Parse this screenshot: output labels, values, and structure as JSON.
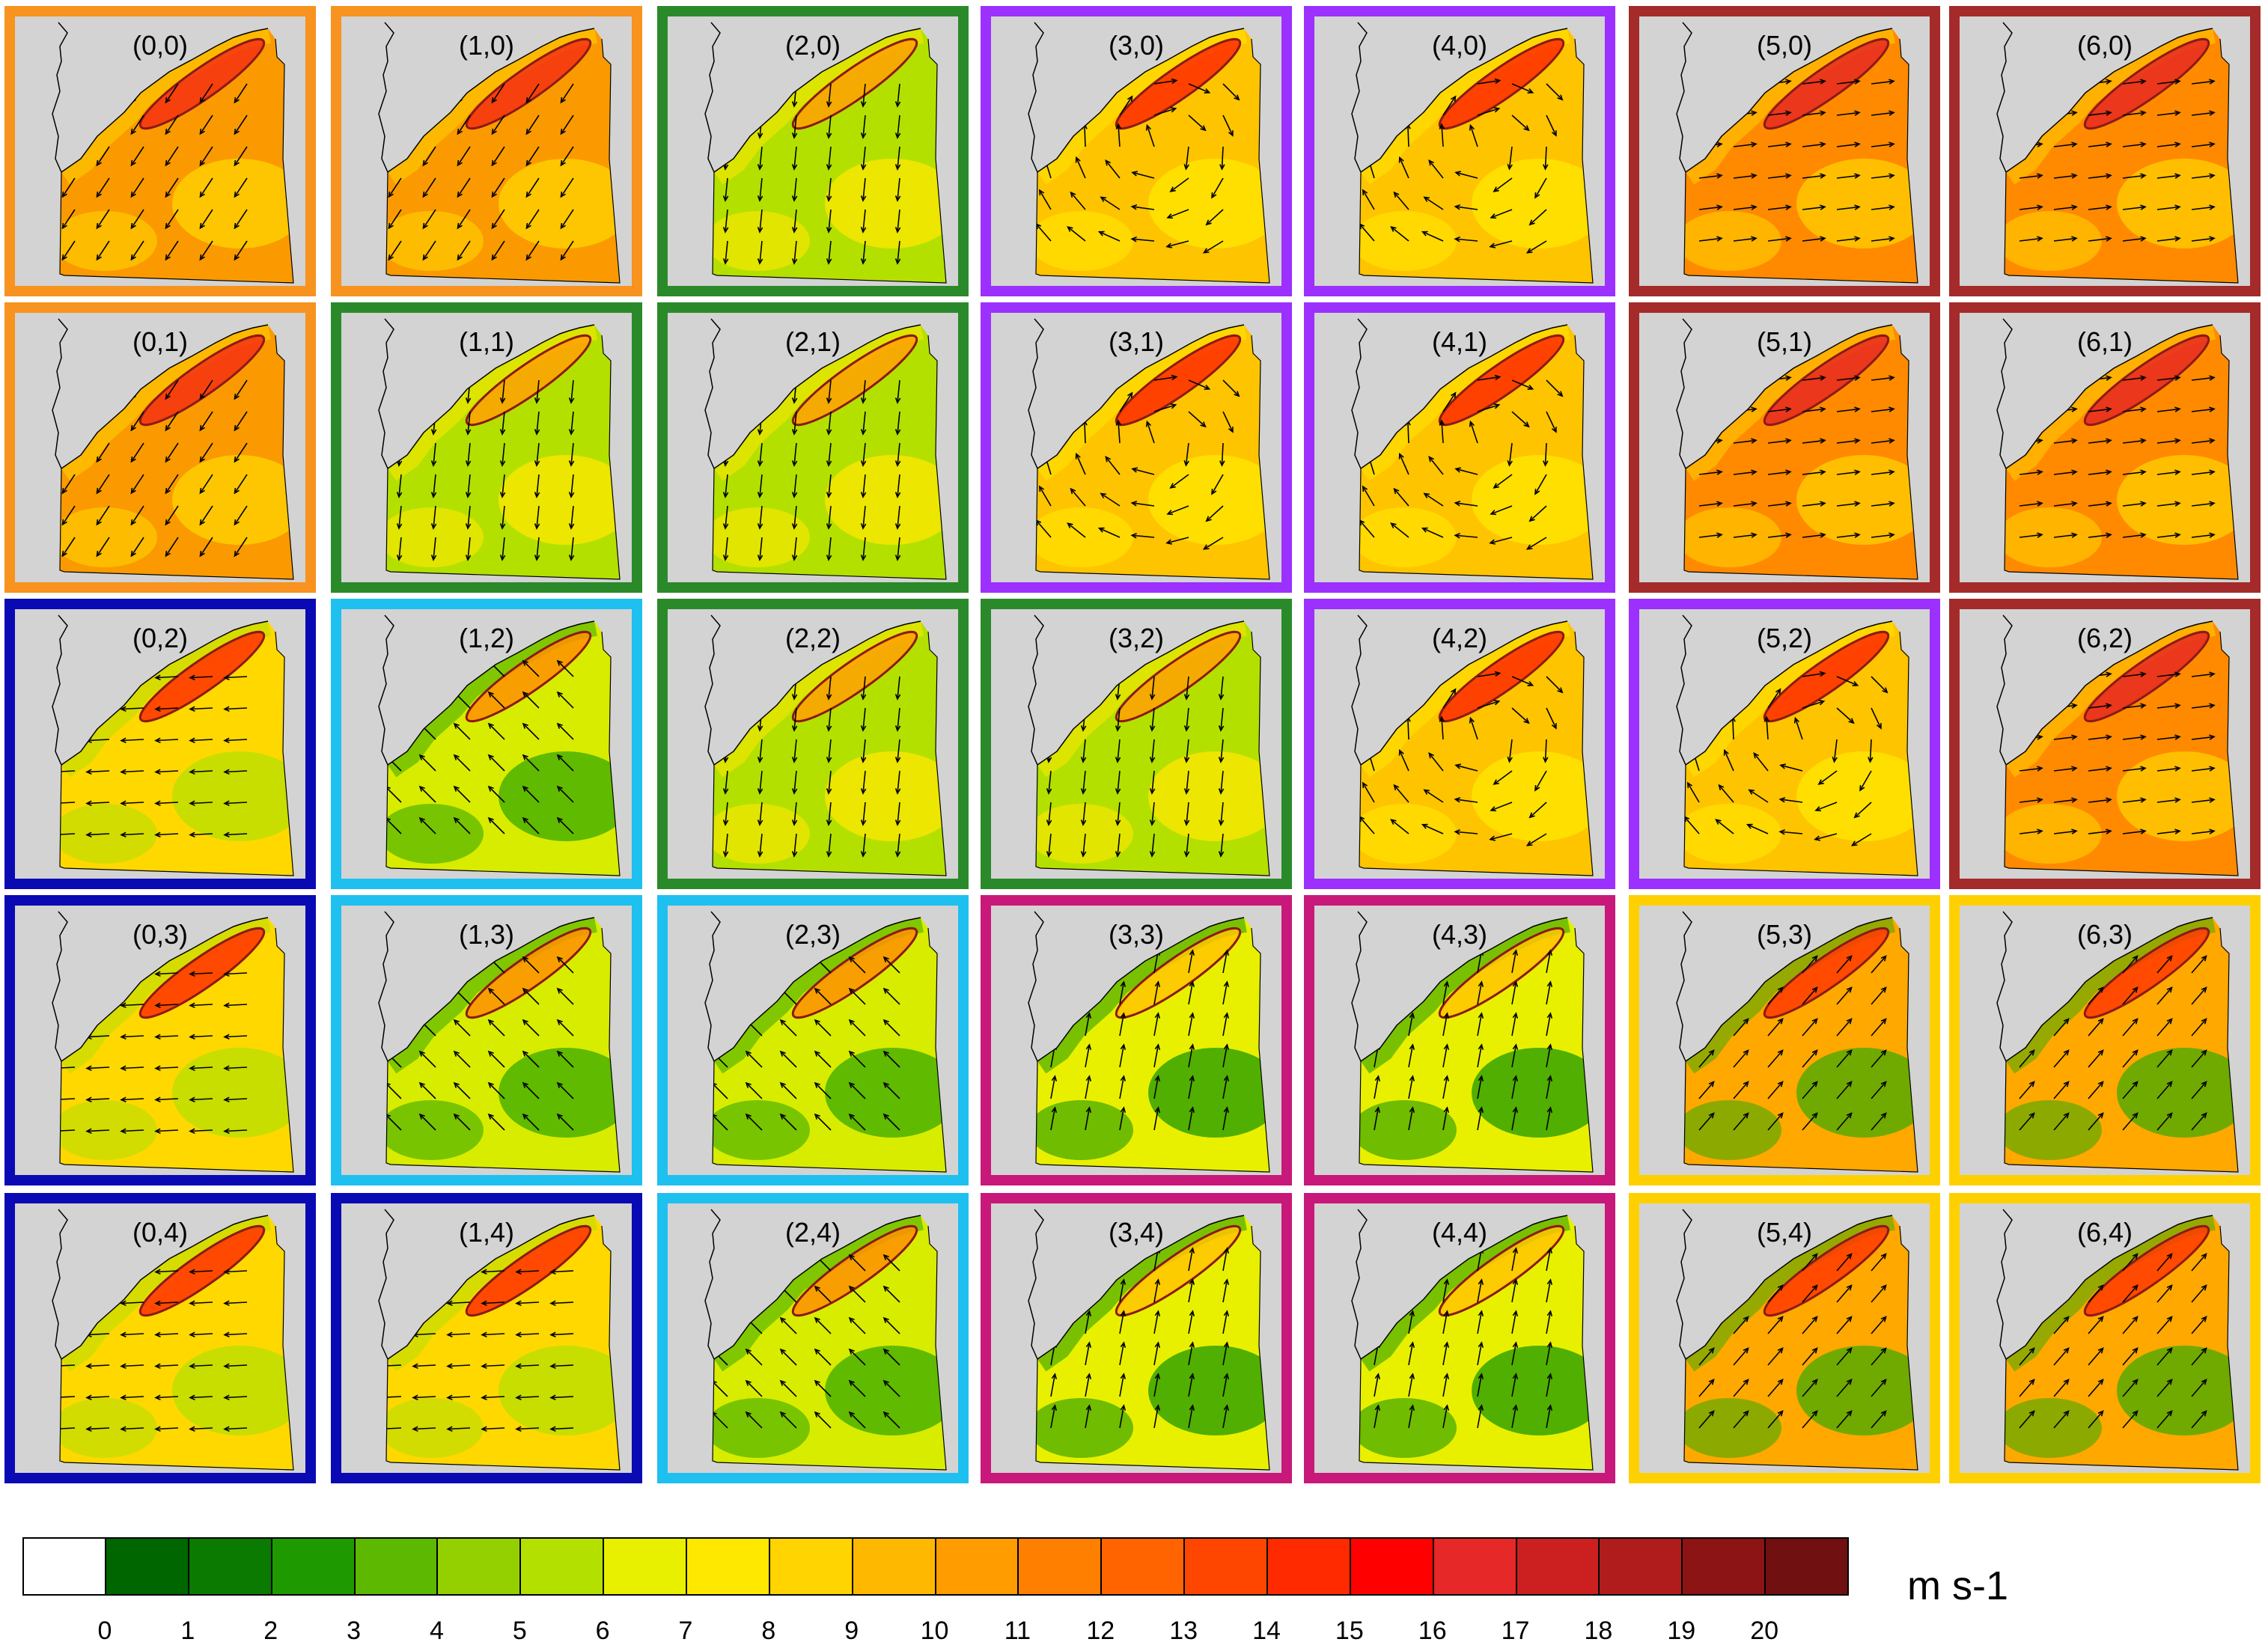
{
  "figure": {
    "panels": [
      {
        "label": "(0,0)",
        "col": 0,
        "row": 0,
        "frame_color": "#f7931e",
        "regime": "orange"
      },
      {
        "label": "(1,0)",
        "col": 1,
        "row": 0,
        "frame_color": "#f7931e",
        "regime": "orange"
      },
      {
        "label": "(2,0)",
        "col": 2,
        "row": 0,
        "frame_color": "#2a8a2a",
        "regime": "green"
      },
      {
        "label": "(3,0)",
        "col": 3,
        "row": 0,
        "frame_color": "#9b30ff",
        "regime": "purple"
      },
      {
        "label": "(4,0)",
        "col": 4,
        "row": 0,
        "frame_color": "#9b30ff",
        "regime": "purple"
      },
      {
        "label": "(5,0)",
        "col": 5,
        "row": 0,
        "frame_color": "#a52a2a",
        "regime": "brown"
      },
      {
        "label": "(6,0)",
        "col": 6,
        "row": 0,
        "frame_color": "#a52a2a",
        "regime": "brown"
      },
      {
        "label": "(0,1)",
        "col": 0,
        "row": 1,
        "frame_color": "#f7931e",
        "regime": "orange"
      },
      {
        "label": "(1,1)",
        "col": 1,
        "row": 1,
        "frame_color": "#2a8a2a",
        "regime": "green"
      },
      {
        "label": "(2,1)",
        "col": 2,
        "row": 1,
        "frame_color": "#2a8a2a",
        "regime": "green"
      },
      {
        "label": "(3,1)",
        "col": 3,
        "row": 1,
        "frame_color": "#9b30ff",
        "regime": "purple"
      },
      {
        "label": "(4,1)",
        "col": 4,
        "row": 1,
        "frame_color": "#9b30ff",
        "regime": "purple"
      },
      {
        "label": "(5,1)",
        "col": 5,
        "row": 1,
        "frame_color": "#a52a2a",
        "regime": "brown"
      },
      {
        "label": "(6,1)",
        "col": 6,
        "row": 1,
        "frame_color": "#a52a2a",
        "regime": "brown"
      },
      {
        "label": "(0,2)",
        "col": 0,
        "row": 2,
        "frame_color": "#0a0ab4",
        "regime": "blue"
      },
      {
        "label": "(1,2)",
        "col": 1,
        "row": 2,
        "frame_color": "#1ec0f0",
        "regime": "cyan"
      },
      {
        "label": "(2,2)",
        "col": 2,
        "row": 2,
        "frame_color": "#2a8a2a",
        "regime": "green"
      },
      {
        "label": "(3,2)",
        "col": 3,
        "row": 2,
        "frame_color": "#2a8a2a",
        "regime": "green"
      },
      {
        "label": "(4,2)",
        "col": 4,
        "row": 2,
        "frame_color": "#9b30ff",
        "regime": "purple"
      },
      {
        "label": "(5,2)",
        "col": 5,
        "row": 2,
        "frame_color": "#9b30ff",
        "regime": "purple"
      },
      {
        "label": "(6,2)",
        "col": 6,
        "row": 2,
        "frame_color": "#a52a2a",
        "regime": "brown"
      },
      {
        "label": "(0,3)",
        "col": 0,
        "row": 3,
        "frame_color": "#0a0ab4",
        "regime": "blue"
      },
      {
        "label": "(1,3)",
        "col": 1,
        "row": 3,
        "frame_color": "#1ec0f0",
        "regime": "cyan"
      },
      {
        "label": "(2,3)",
        "col": 2,
        "row": 3,
        "frame_color": "#1ec0f0",
        "regime": "cyan"
      },
      {
        "label": "(3,3)",
        "col": 3,
        "row": 3,
        "frame_color": "#c8187a",
        "regime": "magenta"
      },
      {
        "label": "(4,3)",
        "col": 4,
        "row": 3,
        "frame_color": "#c8187a",
        "regime": "magenta"
      },
      {
        "label": "(5,3)",
        "col": 5,
        "row": 3,
        "frame_color": "#ffd000",
        "regime": "yellow"
      },
      {
        "label": "(6,3)",
        "col": 6,
        "row": 3,
        "frame_color": "#ffd000",
        "regime": "yellow"
      },
      {
        "label": "(0,4)",
        "col": 0,
        "row": 4,
        "frame_color": "#0a0ab4",
        "regime": "blue"
      },
      {
        "label": "(1,4)",
        "col": 1,
        "row": 4,
        "frame_color": "#0a0ab4",
        "regime": "blue"
      },
      {
        "label": "(2,4)",
        "col": 2,
        "row": 4,
        "frame_color": "#1ec0f0",
        "regime": "cyan"
      },
      {
        "label": "(3,4)",
        "col": 3,
        "row": 4,
        "frame_color": "#c8187a",
        "regime": "magenta"
      },
      {
        "label": "(4,4)",
        "col": 4,
        "row": 4,
        "frame_color": "#c8187a",
        "regime": "magenta"
      },
      {
        "label": "(5,4)",
        "col": 5,
        "row": 4,
        "frame_color": "#ffd000",
        "regime": "yellow"
      },
      {
        "label": "(6,4)",
        "col": 6,
        "row": 4,
        "frame_color": "#ffd000",
        "regime": "yellow"
      }
    ],
    "regime_styles": {
      "orange": {
        "fill": "#fa9a00",
        "alt": "#ffd400",
        "jet": "#f53010",
        "wind": "sw"
      },
      "green": {
        "fill": "#b4e000",
        "alt": "#ffe800",
        "jet": "#ffa000",
        "wind": "s"
      },
      "purple": {
        "fill": "#ffc400",
        "alt": "#ffe800",
        "jet": "#ff2a00",
        "wind": "cyclone"
      },
      "brown": {
        "fill": "#ff8a00",
        "alt": "#ffd000",
        "jet": "#e82820",
        "wind": "e"
      },
      "blue": {
        "fill": "#ffd800",
        "alt": "#b4e000",
        "jet": "#ff3000",
        "wind": "w"
      },
      "cyan": {
        "fill": "#d8ec00",
        "alt": "#38aa00",
        "jet": "#ff9000",
        "wind": "nw"
      },
      "magenta": {
        "fill": "#e8f000",
        "alt": "#1e9a00",
        "jet": "#ffc400",
        "wind": "n"
      },
      "yellow": {
        "fill": "#ffa800",
        "alt": "#40aa00",
        "jet": "#ff3a00",
        "wind": "ne"
      }
    },
    "land_color": "#d3d3d3",
    "colorbar": {
      "colors": [
        "#ffffff",
        "#006600",
        "#0a7a00",
        "#1e9a00",
        "#5cb800",
        "#94d000",
        "#b4e000",
        "#e8f000",
        "#ffe800",
        "#ffd400",
        "#ffb800",
        "#ff9c00",
        "#ff8000",
        "#ff6400",
        "#ff4600",
        "#ff2a00",
        "#ff0000",
        "#e62828",
        "#cc2020",
        "#b01c1c",
        "#8c1414",
        "#701010"
      ],
      "tick_labels": [
        "0",
        "1",
        "2",
        "3",
        "4",
        "5",
        "6",
        "7",
        "8",
        "9",
        "10",
        "11",
        "12",
        "13",
        "14",
        "15",
        "16",
        "17",
        "18",
        "19",
        "20"
      ],
      "units": "m s-1"
    }
  }
}
